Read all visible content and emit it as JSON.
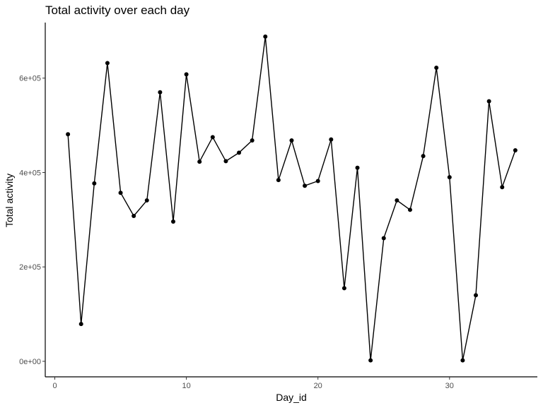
{
  "chart_data": {
    "type": "line",
    "title": "Total activity over each day",
    "xlabel": "Day_id",
    "ylabel": "Total activity",
    "xlim": [
      0,
      36
    ],
    "ylim": [
      0,
      700000
    ],
    "x_ticks": [
      0,
      10,
      20,
      30
    ],
    "x_tick_labels": [
      "0",
      "10",
      "20",
      "30"
    ],
    "y_ticks": [
      0,
      200000,
      400000,
      600000
    ],
    "y_tick_labels": [
      "0e+00",
      "2e+05",
      "4e+05",
      "6e+05"
    ],
    "grid": false,
    "legend": "none",
    "colors": {
      "line": "#000000",
      "point": "#000000",
      "axis": "#000000",
      "tick_label": "#4d4d4d"
    },
    "series": [
      {
        "x": [
          1,
          2,
          3,
          4,
          5,
          6,
          7,
          8,
          9,
          10,
          11,
          12,
          13,
          14,
          15,
          16,
          17,
          18,
          19,
          20,
          21,
          22,
          23,
          24,
          25,
          26,
          27,
          28,
          29,
          30,
          31,
          32,
          33,
          34,
          35
        ],
        "values": [
          481000,
          79000,
          377000,
          632000,
          357000,
          308000,
          341000,
          570000,
          296000,
          608000,
          423000,
          475000,
          424000,
          442000,
          468000,
          688000,
          384000,
          468000,
          372000,
          382000,
          470000,
          155000,
          410000,
          2000,
          261000,
          341000,
          321000,
          435000,
          622000,
          390000,
          2000,
          140000,
          551000,
          369000,
          447000
        ]
      }
    ]
  }
}
